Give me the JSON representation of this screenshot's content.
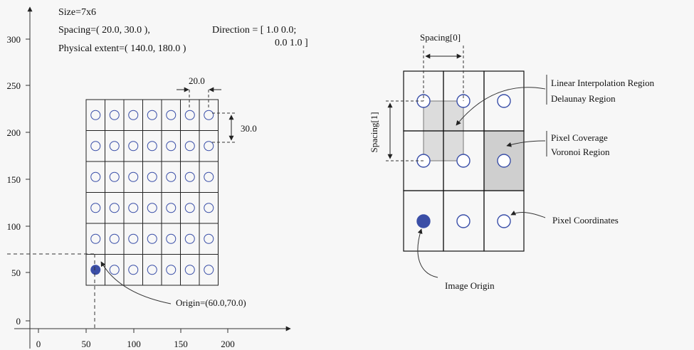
{
  "header": {
    "size": "Size=7x6",
    "spacing": "Spacing=( 20.0, 30.0 ),",
    "direction_1": "Direction = [ 1.0 0.0;",
    "direction_2": "0.0 1.0 ]",
    "extent": "Physical extent=( 140.0, 180.0 )"
  },
  "left_diagram": {
    "columns": 7,
    "rows": 6,
    "x_ticks": [
      "0",
      "50",
      "100",
      "150",
      "200"
    ],
    "y_ticks": [
      "0",
      "50",
      "100",
      "150",
      "200",
      "250",
      "300"
    ],
    "spacing_x_label": "20.0",
    "spacing_y_label": "30.0",
    "origin_label": "Origin=(60.0,70.0)",
    "colors": {
      "pixel_circle": "#3a4fa8",
      "origin_fill": "#3b4ea6"
    }
  },
  "right_diagram": {
    "spacing0_label": "Spacing[0]",
    "spacing1_label": "Spacing[1]",
    "linear_interp_label": "Linear Interpolation Region",
    "delaunay_label": "Delaunay Region",
    "pixel_coverage_label": "Pixel Coverage",
    "voronoi_label": "Voronoi Region",
    "pixel_coords_label": "Pixel Coordinates",
    "image_origin_label": "Image Origin",
    "colors": {
      "delaunay_fill": "#dcdcdc",
      "voronoi_fill": "#cfcfcf"
    }
  }
}
